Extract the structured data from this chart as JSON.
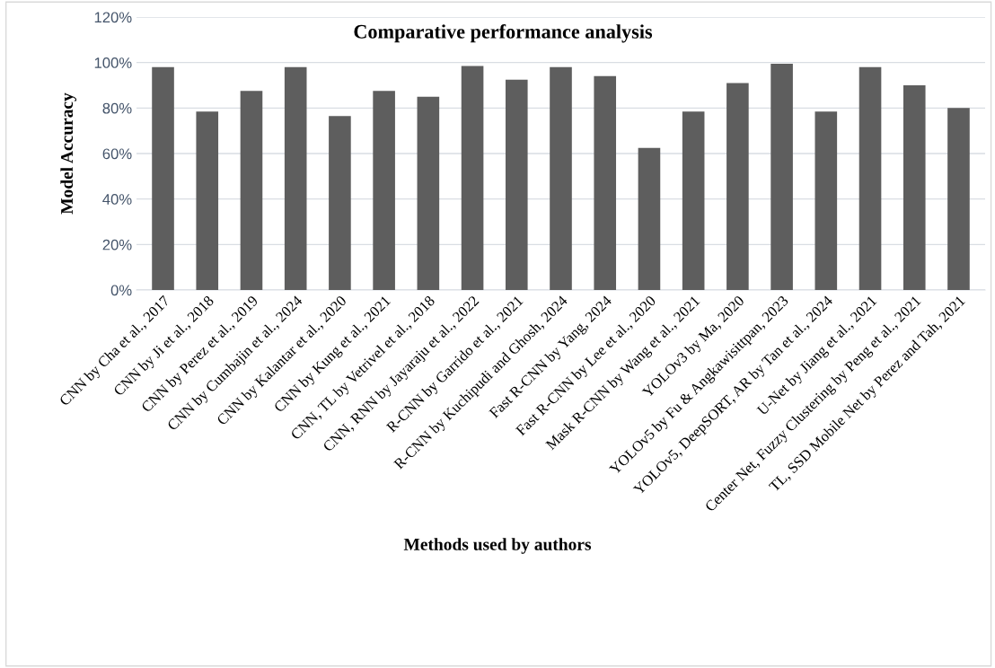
{
  "chart_data": {
    "type": "bar",
    "title": "Comparative performance analysis",
    "xlabel": "Methods used by authors",
    "ylabel": "Model Accuracy",
    "categories": [
      "CNN by Cha et al., 2017",
      "CNN by Ji et al., 2018",
      "CNN by Perez et al., 2019",
      "CNN by Cumbajin et al., 2024",
      "CNN by Kalantar et al., 2020",
      "CNN by Kung et al., 2021",
      "CNN, TL by Vetrivel et al., 2018",
      "CNN, RNN by Jayaraju et al., 2022",
      "R-CNN by Garrido et al., 2021",
      "R-CNN by Kuchipudi and Ghosh, 2024",
      "Fast R-CNN by Yang, 2024",
      "Fast R-CNN by Lee et al., 2020",
      "Mask R-CNN by Wang et al., 2021",
      "YOLOv3 by Ma, 2020",
      "YOLOv5 by Fu & Angkawisittpan, 2023",
      "YOLOv5, DeepSORT, AR by Tan et al., 2024",
      "U-Net by Jiang et al., 2021",
      "Center Net, Fuzzy Clustering by Peng et al., 2021",
      "TL, SSD Mobile Net by Perez and Tah, 2021"
    ],
    "values": [
      98,
      78.5,
      87.5,
      98,
      76.5,
      87.5,
      85,
      98.5,
      92.5,
      98,
      94,
      62.5,
      78.5,
      91,
      99.5,
      78.5,
      98,
      90,
      80
    ],
    "color": "#5e5e5e",
    "ylim": [
      0,
      120
    ],
    "yticks": [
      {
        "value": 0,
        "label": "0%"
      },
      {
        "value": 20,
        "label": "20%"
      },
      {
        "value": 40,
        "label": "40%"
      },
      {
        "value": 60,
        "label": "60%"
      },
      {
        "value": 80,
        "label": "80%"
      },
      {
        "value": 100,
        "label": "100%"
      },
      {
        "value": 120,
        "label": "120%"
      }
    ],
    "grid": "y",
    "legend": false
  }
}
